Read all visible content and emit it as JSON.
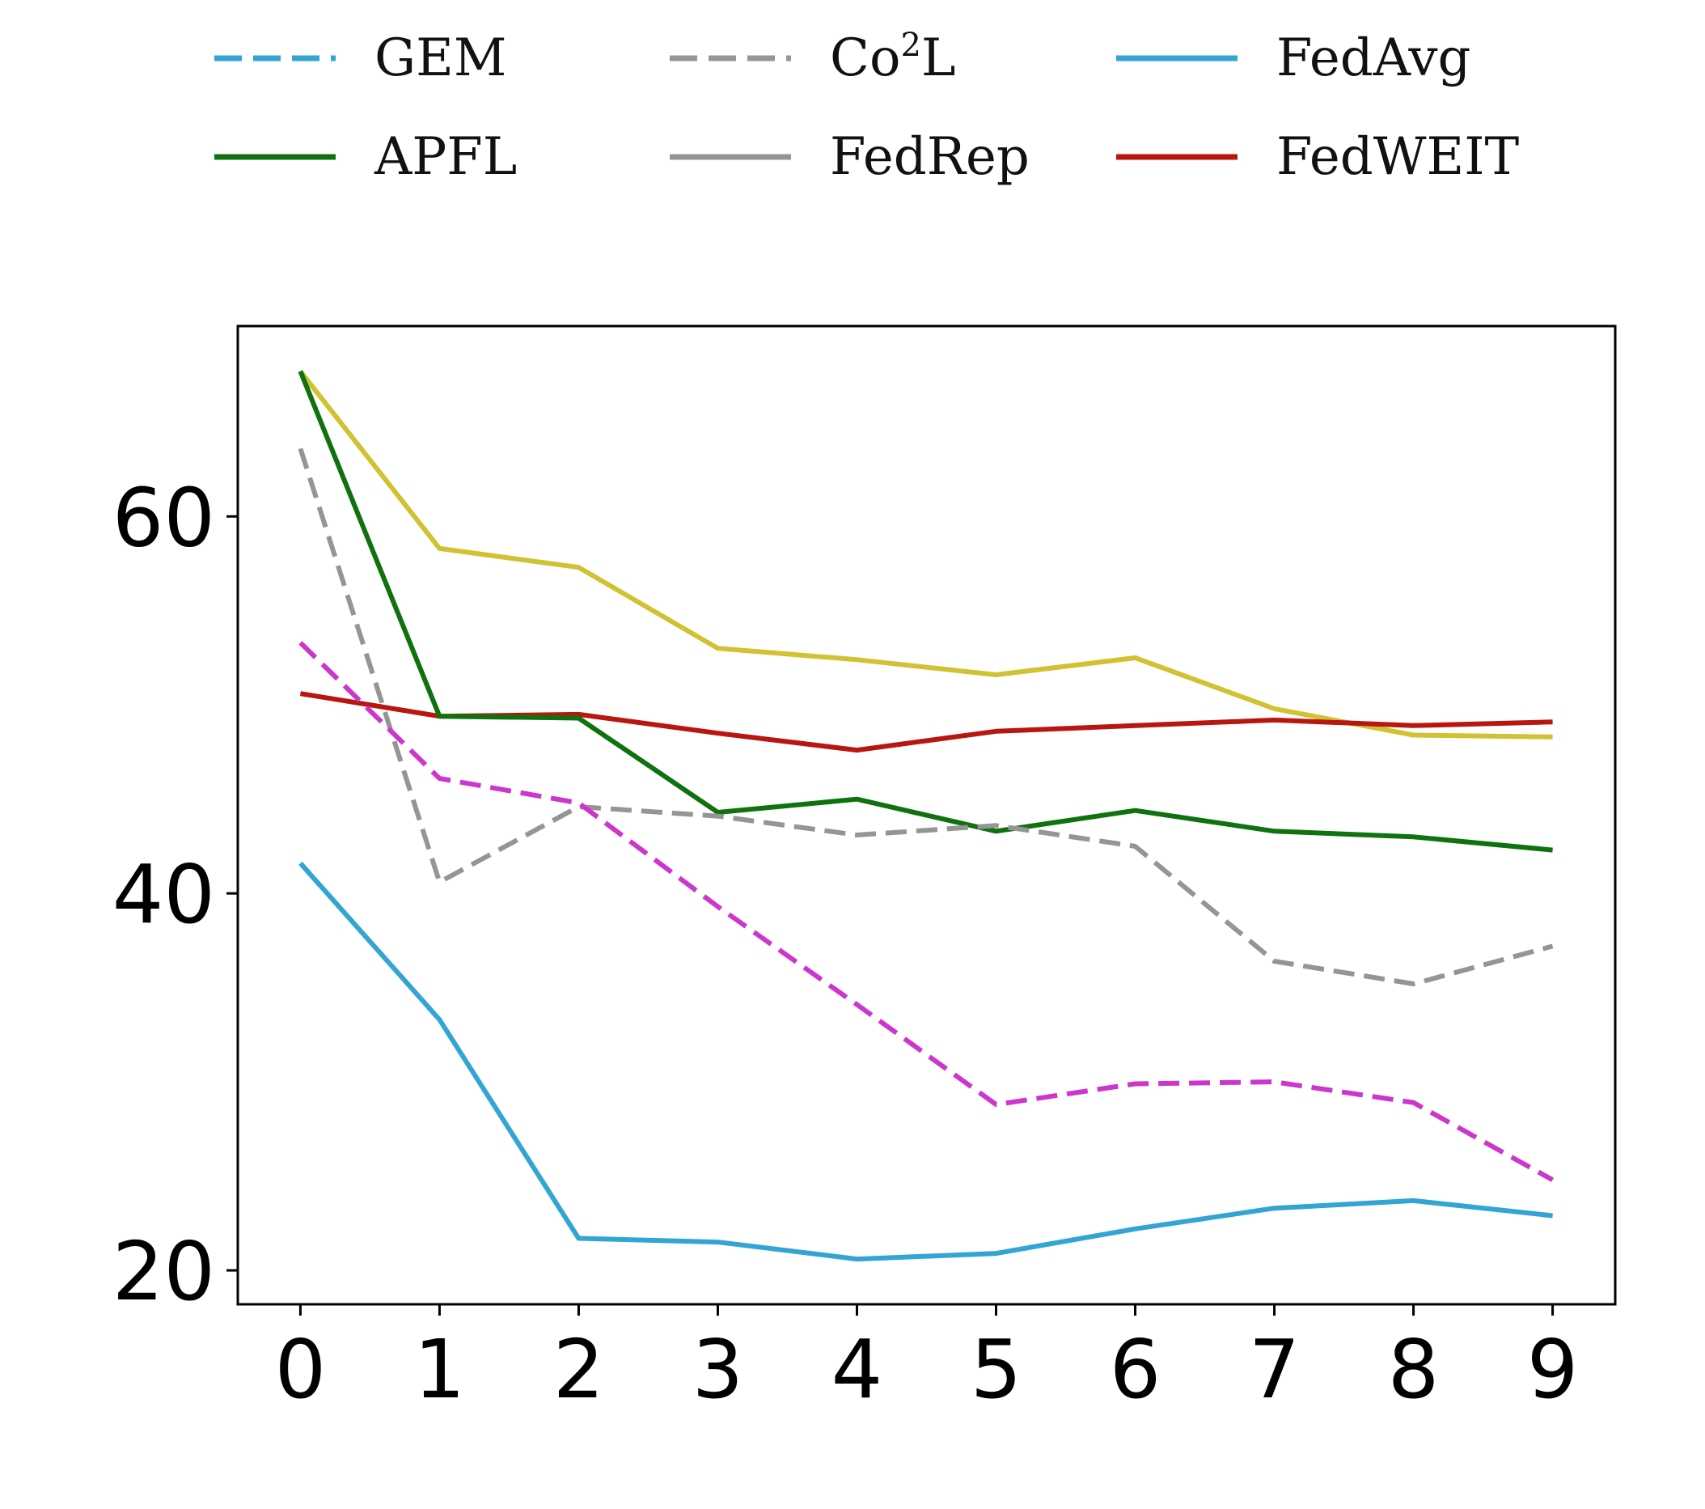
{
  "chart_data": {
    "type": "line",
    "x": [
      0,
      1,
      2,
      3,
      4,
      5,
      6,
      7,
      8,
      9
    ],
    "xticks": [
      "0",
      "1",
      "2",
      "3",
      "4",
      "5",
      "6",
      "7",
      "8",
      "9"
    ],
    "yticks": [
      "20",
      "40",
      "60"
    ],
    "ytick_values": [
      20,
      40,
      60
    ],
    "xlim": [
      -0.45,
      9.45
    ],
    "ylim": [
      18.2,
      70.1
    ],
    "grid": false,
    "legend_position": "top",
    "legend": [
      {
        "name": "GEM",
        "base": "GEM",
        "sup": "",
        "tail": "",
        "color": "#32a5d2",
        "dash": true
      },
      {
        "name": "Co2L",
        "base": "Co",
        "sup": "2",
        "tail": "L",
        "color": "#959595",
        "dash": true
      },
      {
        "name": "FedAvg",
        "base": "FedAvg",
        "sup": "",
        "tail": "",
        "color": "#32a5d2",
        "dash": false
      },
      {
        "name": "APFL",
        "base": "APFL",
        "sup": "",
        "tail": "",
        "color": "#0f720f",
        "dash": false
      },
      {
        "name": "FedRep",
        "base": "FedRep",
        "sup": "",
        "tail": "",
        "color": "#959595",
        "dash": false
      },
      {
        "name": "FedWEIT",
        "base": "FedWEIT",
        "sup": "",
        "tail": "",
        "color": "#b8160f",
        "dash": false
      }
    ],
    "series": [
      {
        "color": "#d0c232",
        "dash": false,
        "values": [
          67.7,
          58.3,
          57.3,
          53.0,
          52.4,
          51.6,
          52.5,
          49.8,
          48.4,
          48.3
        ]
      },
      {
        "name": "FedWEIT",
        "color": "#b8160f",
        "dash": false,
        "values": [
          50.6,
          49.4,
          49.5,
          48.5,
          47.6,
          48.6,
          48.9,
          49.2,
          48.9,
          49.1
        ]
      },
      {
        "name": "APFL",
        "color": "#0f720f",
        "dash": false,
        "values": [
          67.7,
          49.4,
          49.3,
          44.3,
          45.0,
          43.3,
          44.4,
          43.3,
          43.0,
          42.3
        ]
      },
      {
        "name": "Co2L",
        "color": "#959595",
        "dash": true,
        "values": [
          63.6,
          40.6,
          44.6,
          44.1,
          43.1,
          43.6,
          42.5,
          36.4,
          35.2,
          37.2
        ]
      },
      {
        "color": "#cc36cc",
        "dash": true,
        "values": [
          53.3,
          46.1,
          44.8,
          39.3,
          34.1,
          28.8,
          29.9,
          30.0,
          28.9,
          24.8
        ]
      },
      {
        "name": "FedAvg",
        "color": "#32a5d2",
        "dash": false,
        "values": [
          41.6,
          33.3,
          21.7,
          21.5,
          20.6,
          20.9,
          22.2,
          23.3,
          23.7,
          22.9
        ]
      }
    ]
  }
}
